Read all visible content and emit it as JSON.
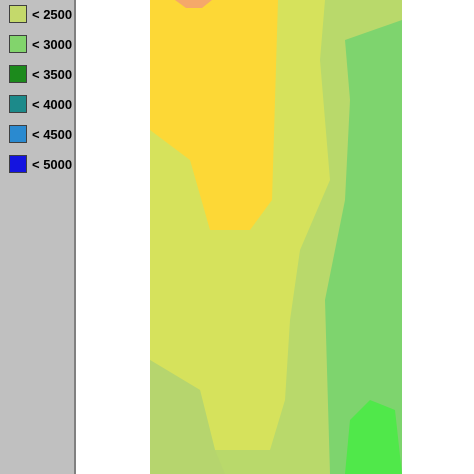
{
  "legend": {
    "items": [
      {
        "label": "< 2500",
        "color": "#c4d96b"
      },
      {
        "label": "< 3000",
        "color": "#82d46c"
      },
      {
        "label": "< 3500",
        "color": "#1c8a1c"
      },
      {
        "label": "< 4000",
        "color": "#1c8a8a"
      },
      {
        "label": "< 4500",
        "color": "#2a8ad0"
      },
      {
        "label": "< 5000",
        "color": "#1414e0"
      }
    ]
  }
}
